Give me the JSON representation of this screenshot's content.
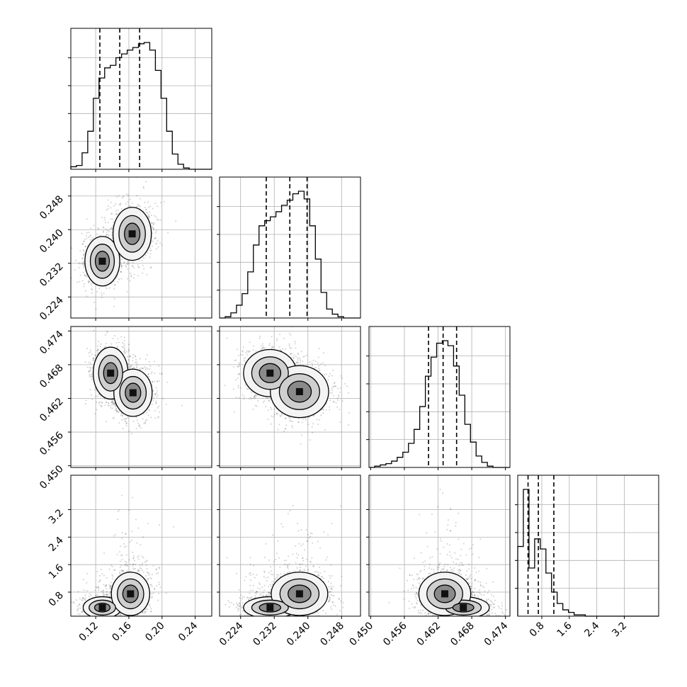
{
  "chart_data": {
    "type": "corner",
    "grid": true,
    "params": [
      {
        "range": [
          0.09,
          0.26
        ],
        "ticks": [
          "0.12",
          "0.16",
          "0.20",
          "0.24"
        ],
        "samples_mean": 0.152,
        "hist_values": [
          0.02,
          0.03,
          0.13,
          0.3,
          0.56,
          0.72,
          0.8,
          0.82,
          0.88,
          0.91,
          0.94,
          0.96,
          0.99,
          1.0,
          0.94,
          0.78,
          0.56,
          0.3,
          0.12,
          0.04,
          0.01,
          0.0,
          0.0,
          0.0,
          0.0
        ],
        "quantiles": [
          0.125,
          0.149,
          0.173
        ]
      },
      {
        "range": [
          0.219,
          0.2525
        ],
        "ticks": [
          "0.224",
          "0.232",
          "0.240",
          "0.248"
        ],
        "hist_values": [
          0.0,
          0.01,
          0.04,
          0.1,
          0.19,
          0.36,
          0.57,
          0.72,
          0.76,
          0.79,
          0.83,
          0.88,
          0.92,
          0.97,
          0.99,
          0.93,
          0.72,
          0.46,
          0.2,
          0.07,
          0.03,
          0.01,
          0.0,
          0.0,
          0.0
        ],
        "quantiles": [
          0.2301,
          0.2357,
          0.2398
        ]
      },
      {
        "range": [
          0.4497,
          0.4748
        ],
        "ticks": [
          "0.450",
          "0.456",
          "0.462",
          "0.468",
          "0.474"
        ],
        "hist_values": [
          0.0,
          0.01,
          0.02,
          0.03,
          0.05,
          0.08,
          0.12,
          0.19,
          0.3,
          0.48,
          0.72,
          0.87,
          0.98,
          1.0,
          0.96,
          0.8,
          0.57,
          0.34,
          0.2,
          0.09,
          0.04,
          0.01,
          0.0,
          0.0,
          0.0
        ],
        "quantiles": [
          0.4603,
          0.4629,
          0.4653
        ]
      },
      {
        "range": [
          0.1,
          4.2
        ],
        "ticks": [
          "0.8",
          "1.6",
          "2.4",
          "3.2"
        ],
        "hist_values": [
          0.55,
          1.0,
          0.38,
          0.61,
          0.53,
          0.34,
          0.19,
          0.1,
          0.05,
          0.03,
          0.01,
          0.01,
          0.0,
          0.0,
          0.0,
          0.0,
          0.0,
          0.0,
          0.0,
          0.0,
          0.0,
          0.0,
          0.0,
          0.0,
          0.0
        ],
        "quantiles": [
          0.4,
          0.7,
          1.15
        ]
      }
    ],
    "y_ticks": {
      "row1": [
        "0.224",
        "0.232",
        "0.240",
        "0.248"
      ],
      "row2": [
        "0.450",
        "0.456",
        "0.462",
        "0.468",
        "0.474"
      ],
      "row3": [
        "0.8",
        "1.6",
        "2.4",
        "3.2"
      ]
    },
    "pairs": [
      {
        "i": 1,
        "j": 0,
        "modes": [
          {
            "x": 0.128,
            "y": 0.2325,
            "sx": 0.01,
            "sy": 0.0028,
            "w": 0.45
          },
          {
            "x": 0.164,
            "y": 0.239,
            "sx": 0.011,
            "sy": 0.003,
            "w": 0.55
          }
        ]
      },
      {
        "i": 2,
        "j": 0,
        "modes": [
          {
            "x": 0.138,
            "y": 0.4665,
            "sx": 0.01,
            "sy": 0.0022,
            "w": 0.45
          },
          {
            "x": 0.165,
            "y": 0.463,
            "sx": 0.011,
            "sy": 0.002,
            "w": 0.55
          }
        ]
      },
      {
        "i": 2,
        "j": 1,
        "modes": [
          {
            "x": 0.231,
            "y": 0.4665,
            "sx": 0.003,
            "sy": 0.002,
            "w": 0.45
          },
          {
            "x": 0.238,
            "y": 0.4632,
            "sx": 0.0033,
            "sy": 0.0022,
            "w": 0.55
          }
        ]
      },
      {
        "i": 3,
        "j": 0,
        "modes": [
          {
            "x": 0.128,
            "y": 0.35,
            "sx": 0.011,
            "sy": 0.15,
            "w": 0.45
          },
          {
            "x": 0.162,
            "y": 0.75,
            "sx": 0.011,
            "sy": 0.3,
            "w": 0.55
          }
        ]
      },
      {
        "i": 3,
        "j": 1,
        "modes": [
          {
            "x": 0.231,
            "y": 0.35,
            "sx": 0.003,
            "sy": 0.15,
            "w": 0.45
          },
          {
            "x": 0.238,
            "y": 0.75,
            "sx": 0.0032,
            "sy": 0.3,
            "w": 0.55
          }
        ]
      },
      {
        "i": 3,
        "j": 2,
        "modes": [
          {
            "x": 0.4665,
            "y": 0.35,
            "sx": 0.0022,
            "sy": 0.15,
            "w": 0.45
          },
          {
            "x": 0.4632,
            "y": 0.75,
            "sx": 0.0022,
            "sy": 0.3,
            "w": 0.55
          }
        ]
      }
    ]
  }
}
